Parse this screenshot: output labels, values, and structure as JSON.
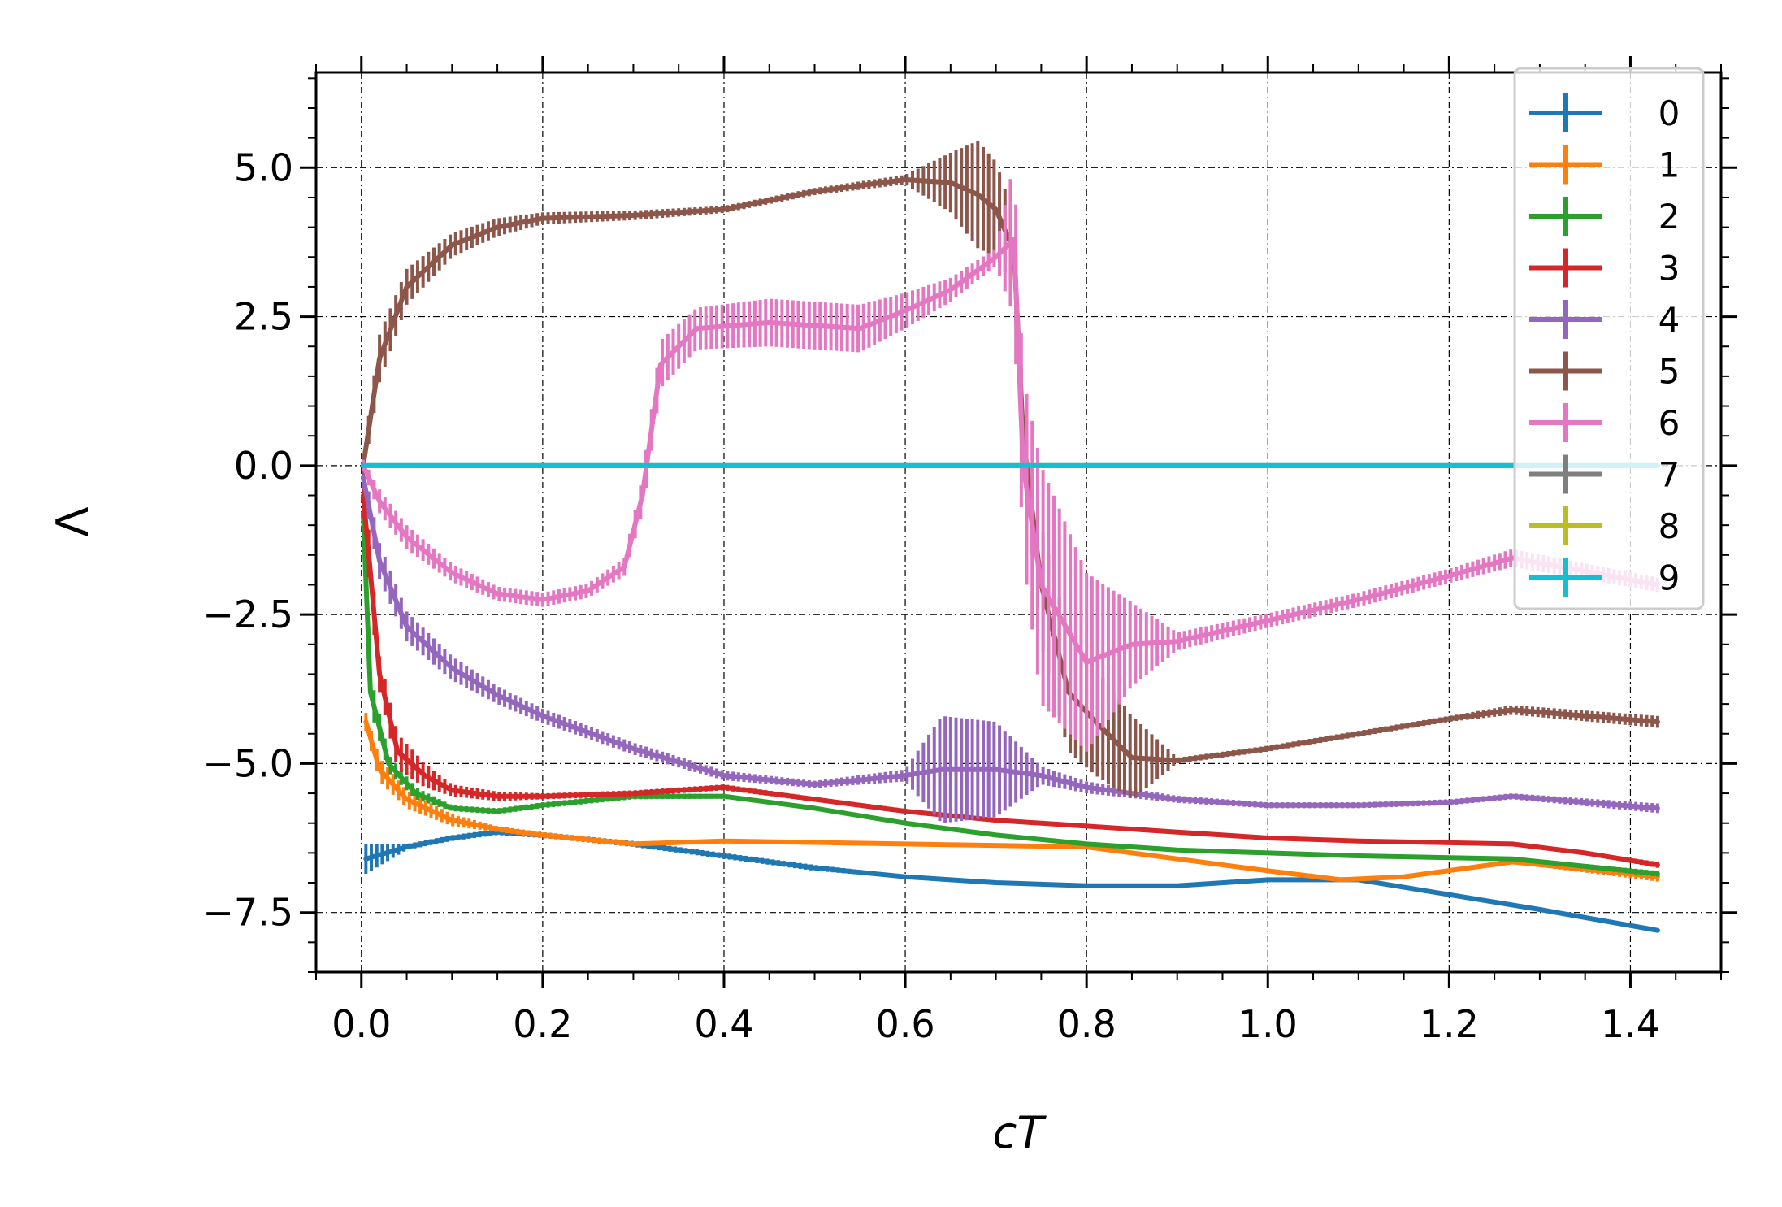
{
  "chart_data": {
    "type": "line",
    "title": "",
    "xlabel": "cT",
    "ylabel": "Λ",
    "xlim": [
      -0.05,
      1.5
    ],
    "ylim": [
      -8.5,
      6.6
    ],
    "xticks": [
      0.0,
      0.2,
      0.4,
      0.6,
      0.8,
      1.0,
      1.2,
      1.4
    ],
    "xtick_labels": [
      "0.0",
      "0.2",
      "0.4",
      "0.6",
      "0.8",
      "1.0",
      "1.2",
      "1.4"
    ],
    "yticks": [
      5.0,
      2.5,
      0.0,
      -2.5,
      -5.0,
      -7.5
    ],
    "ytick_labels": [
      "5.0",
      "2.5",
      "0.0",
      "−2.5",
      "−5.0",
      "−7.5"
    ],
    "grid": true,
    "error_bars": "vertical",
    "legend_position": "top-right",
    "series": [
      {
        "name": "0",
        "color": "#1f77b4",
        "x": [
          0.005,
          0.05,
          0.1,
          0.15,
          0.2,
          0.3,
          0.4,
          0.5,
          0.6,
          0.7,
          0.8,
          0.9,
          1.0,
          1.1,
          1.2,
          1.3,
          1.43
        ],
        "y": [
          -6.6,
          -6.4,
          -6.25,
          -6.15,
          -6.2,
          -6.35,
          -6.55,
          -6.75,
          -6.9,
          -7.0,
          -7.05,
          -7.05,
          -6.95,
          -6.95,
          -7.2,
          -7.45,
          -7.8
        ],
        "err": [
          0.25,
          0.05,
          0.05,
          0.05,
          0.05,
          0.05,
          0.05,
          0.05,
          0.03,
          0.03,
          0.03,
          0.03,
          0.03,
          0.03,
          0.03,
          0.03,
          0.03
        ]
      },
      {
        "name": "1",
        "color": "#ff7f0e",
        "x": [
          0.005,
          0.02,
          0.05,
          0.1,
          0.15,
          0.2,
          0.3,
          0.4,
          0.6,
          0.8,
          0.9,
          1.0,
          1.08,
          1.15,
          1.27,
          1.43
        ],
        "y": [
          -4.3,
          -5.1,
          -5.6,
          -5.95,
          -6.1,
          -6.2,
          -6.35,
          -6.3,
          -6.35,
          -6.4,
          -6.6,
          -6.8,
          -6.95,
          -6.9,
          -6.65,
          -6.9
        ],
        "err": [
          0.15,
          0.2,
          0.15,
          0.1,
          0.05,
          0.05,
          0.04,
          0.03,
          0.03,
          0.03,
          0.03,
          0.03,
          0.03,
          0.03,
          0.03,
          0.08
        ]
      },
      {
        "name": "2",
        "color": "#2ca02c",
        "x": [
          0.002,
          0.01,
          0.03,
          0.06,
          0.1,
          0.15,
          0.2,
          0.3,
          0.4,
          0.5,
          0.6,
          0.7,
          0.8,
          0.9,
          1.0,
          1.1,
          1.27,
          1.43
        ],
        "y": [
          -0.8,
          -3.8,
          -5.0,
          -5.5,
          -5.75,
          -5.8,
          -5.7,
          -5.55,
          -5.55,
          -5.75,
          -6.0,
          -6.2,
          -6.35,
          -6.45,
          -6.5,
          -6.55,
          -6.6,
          -6.85
        ],
        "err": [
          0.5,
          0.3,
          0.15,
          0.1,
          0.05,
          0.05,
          0.05,
          0.05,
          0.04,
          0.03,
          0.03,
          0.03,
          0.03,
          0.03,
          0.03,
          0.03,
          0.03,
          0.05
        ]
      },
      {
        "name": "3",
        "color": "#d62728",
        "x": [
          0.002,
          0.01,
          0.02,
          0.04,
          0.07,
          0.1,
          0.15,
          0.2,
          0.3,
          0.4,
          0.5,
          0.6,
          0.7,
          0.8,
          0.9,
          1.0,
          1.1,
          1.27,
          1.35,
          1.43
        ],
        "y": [
          -0.5,
          -1.8,
          -3.5,
          -4.8,
          -5.2,
          -5.45,
          -5.55,
          -5.55,
          -5.5,
          -5.4,
          -5.6,
          -5.8,
          -5.95,
          -6.05,
          -6.15,
          -6.25,
          -6.3,
          -6.35,
          -6.5,
          -6.7
        ],
        "err": [
          0.4,
          0.4,
          0.3,
          0.3,
          0.2,
          0.1,
          0.08,
          0.05,
          0.05,
          0.05,
          0.04,
          0.04,
          0.03,
          0.03,
          0.03,
          0.03,
          0.03,
          0.03,
          0.03,
          0.05
        ]
      },
      {
        "name": "4",
        "color": "#9467bd",
        "x": [
          0.002,
          0.02,
          0.05,
          0.1,
          0.15,
          0.2,
          0.3,
          0.4,
          0.5,
          0.6,
          0.64,
          0.7,
          0.75,
          0.8,
          0.9,
          1.0,
          1.1,
          1.2,
          1.27,
          1.43
        ],
        "y": [
          -0.2,
          -1.6,
          -2.7,
          -3.4,
          -3.85,
          -4.2,
          -4.75,
          -5.2,
          -5.35,
          -5.2,
          -5.1,
          -5.1,
          -5.2,
          -5.4,
          -5.6,
          -5.7,
          -5.7,
          -5.65,
          -5.55,
          -5.75
        ],
        "err": [
          0.2,
          0.3,
          0.25,
          0.2,
          0.15,
          0.12,
          0.1,
          0.08,
          0.06,
          0.1,
          0.9,
          0.8,
          0.15,
          0.1,
          0.06,
          0.05,
          0.05,
          0.05,
          0.05,
          0.08
        ]
      },
      {
        "name": "5",
        "color": "#8c564b",
        "x": [
          0.002,
          0.02,
          0.05,
          0.1,
          0.15,
          0.2,
          0.3,
          0.4,
          0.5,
          0.6,
          0.65,
          0.68,
          0.7,
          0.72,
          0.73,
          0.75,
          0.78,
          0.81,
          0.85,
          0.9,
          1.0,
          1.1,
          1.2,
          1.27,
          1.43
        ],
        "y": [
          0.0,
          1.8,
          3.0,
          3.7,
          4.0,
          4.15,
          4.2,
          4.3,
          4.6,
          4.8,
          4.75,
          4.55,
          4.3,
          3.6,
          0.5,
          -2.0,
          -3.8,
          -4.3,
          -4.9,
          -4.95,
          -4.75,
          -4.5,
          -4.25,
          -4.1,
          -4.3
        ],
        "err": [
          0.15,
          0.4,
          0.3,
          0.2,
          0.15,
          0.1,
          0.08,
          0.06,
          0.06,
          0.08,
          0.5,
          0.9,
          0.8,
          0.6,
          0.5,
          1.0,
          1.0,
          0.9,
          0.7,
          0.05,
          0.05,
          0.05,
          0.05,
          0.08,
          0.1
        ]
      },
      {
        "name": "6",
        "color": "#e377c2",
        "x": [
          0.002,
          0.02,
          0.05,
          0.1,
          0.15,
          0.2,
          0.25,
          0.29,
          0.31,
          0.33,
          0.37,
          0.45,
          0.55,
          0.6,
          0.65,
          0.7,
          0.72,
          0.73,
          0.75,
          0.8,
          0.85,
          0.9,
          1.0,
          1.1,
          1.2,
          1.27,
          1.43
        ],
        "y": [
          0.0,
          -0.6,
          -1.2,
          -1.8,
          -2.15,
          -2.25,
          -2.1,
          -1.7,
          -0.5,
          1.7,
          2.3,
          2.4,
          2.3,
          2.6,
          2.95,
          3.5,
          3.8,
          0.0,
          -2.0,
          -3.3,
          -3.0,
          -2.95,
          -2.6,
          -2.25,
          -1.85,
          -1.55,
          -2.0
        ],
        "err": [
          0.1,
          0.2,
          0.2,
          0.15,
          0.12,
          0.12,
          0.12,
          0.15,
          0.3,
          0.4,
          0.35,
          0.4,
          0.4,
          0.3,
          0.2,
          0.15,
          1.3,
          1.5,
          2.0,
          1.5,
          0.7,
          0.15,
          0.12,
          0.12,
          0.12,
          0.15,
          0.12
        ]
      },
      {
        "name": "7",
        "color": "#7f7f7f",
        "x": [
          0.002,
          1.43
        ],
        "y": [
          0.0,
          0.0
        ],
        "err": [
          0.02,
          0.02
        ]
      },
      {
        "name": "8",
        "color": "#bcbd22",
        "x": [
          0.002,
          1.43
        ],
        "y": [
          0.0,
          0.0
        ],
        "err": [
          0.02,
          0.02
        ]
      },
      {
        "name": "9",
        "color": "#17becf",
        "x": [
          0.002,
          1.43
        ],
        "y": [
          0.0,
          0.0
        ],
        "err": [
          0.02,
          0.02
        ]
      }
    ]
  }
}
